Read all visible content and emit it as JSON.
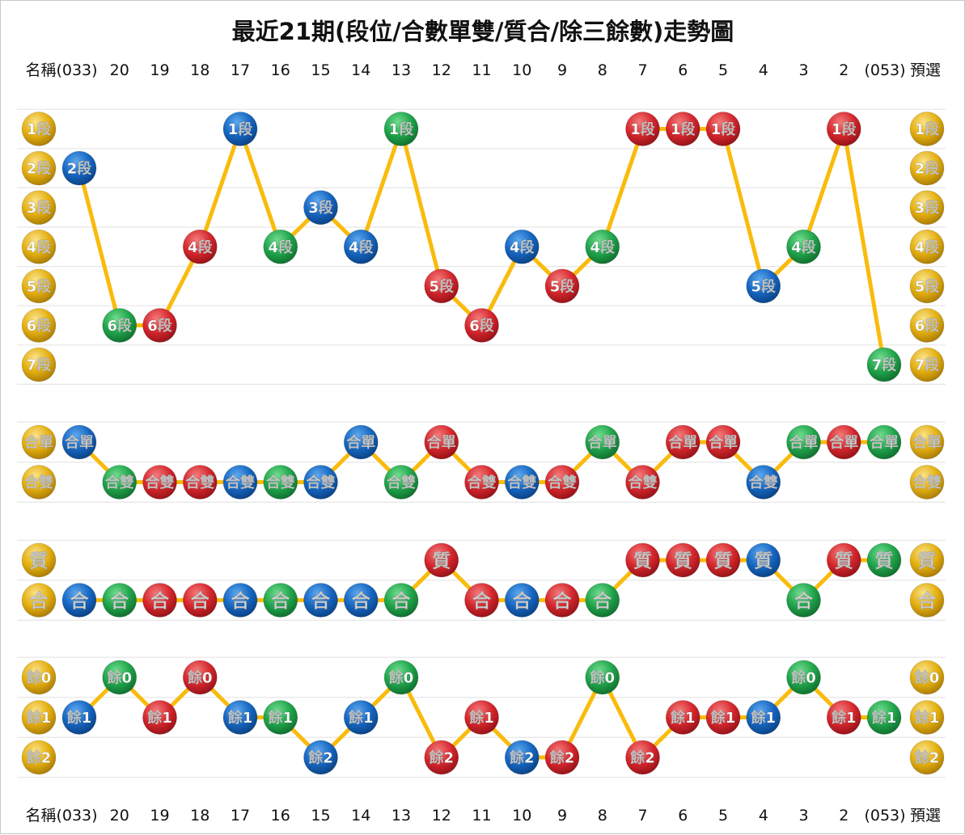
{
  "title": "最近21期(段位/合數單雙/質合/除三餘數)走勢圖",
  "header": {
    "left_label": "名稱(033)",
    "periods": [
      "20",
      "19",
      "18",
      "17",
      "16",
      "15",
      "14",
      "13",
      "12",
      "11",
      "10",
      "9",
      "8",
      "7",
      "6",
      "5",
      "4",
      "3",
      "2"
    ],
    "right_label_a": "(053)",
    "right_label_b": "預選"
  },
  "colors": {
    "line": "#F9BB0C",
    "blue": "#1565C0",
    "red": "#D3262C",
    "green": "#1FA34A",
    "gold": "#E3AE0E"
  },
  "chart_data": [
    {
      "type": "line",
      "name": "段位",
      "levels": [
        "1段",
        "2段",
        "3段",
        "4段",
        "5段",
        "6段",
        "7段"
      ],
      "points": [
        {
          "period": "033",
          "value": "2段",
          "color": "blue"
        },
        {
          "period": "20",
          "value": "6段",
          "color": "green"
        },
        {
          "period": "19",
          "value": "6段",
          "color": "red"
        },
        {
          "period": "18",
          "value": "4段",
          "color": "red"
        },
        {
          "period": "17",
          "value": "1段",
          "color": "blue"
        },
        {
          "period": "16",
          "value": "4段",
          "color": "green"
        },
        {
          "period": "15",
          "value": "3段",
          "color": "blue"
        },
        {
          "period": "14",
          "value": "4段",
          "color": "blue"
        },
        {
          "period": "13",
          "value": "1段",
          "color": "green"
        },
        {
          "period": "12",
          "value": "5段",
          "color": "red"
        },
        {
          "period": "11",
          "value": "6段",
          "color": "red"
        },
        {
          "period": "10",
          "value": "4段",
          "color": "blue"
        },
        {
          "period": "9",
          "value": "5段",
          "color": "red"
        },
        {
          "period": "8",
          "value": "4段",
          "color": "green"
        },
        {
          "period": "7",
          "value": "1段",
          "color": "red"
        },
        {
          "period": "6",
          "value": "1段",
          "color": "red"
        },
        {
          "period": "5",
          "value": "1段",
          "color": "red"
        },
        {
          "period": "4",
          "value": "5段",
          "color": "blue"
        },
        {
          "period": "3",
          "value": "4段",
          "color": "green"
        },
        {
          "period": "2",
          "value": "1段",
          "color": "red"
        },
        {
          "period": "053",
          "value": "7段",
          "color": "green"
        }
      ]
    },
    {
      "type": "line",
      "name": "合數單雙",
      "levels": [
        "合單",
        "合雙"
      ],
      "points": [
        {
          "period": "033",
          "value": "合單",
          "color": "blue"
        },
        {
          "period": "20",
          "value": "合雙",
          "color": "green"
        },
        {
          "period": "19",
          "value": "合雙",
          "color": "red"
        },
        {
          "period": "18",
          "value": "合雙",
          "color": "red"
        },
        {
          "period": "17",
          "value": "合雙",
          "color": "blue"
        },
        {
          "period": "16",
          "value": "合雙",
          "color": "green"
        },
        {
          "period": "15",
          "value": "合雙",
          "color": "blue"
        },
        {
          "period": "14",
          "value": "合單",
          "color": "blue"
        },
        {
          "period": "13",
          "value": "合雙",
          "color": "green"
        },
        {
          "period": "12",
          "value": "合單",
          "color": "red"
        },
        {
          "period": "11",
          "value": "合雙",
          "color": "red"
        },
        {
          "period": "10",
          "value": "合雙",
          "color": "blue"
        },
        {
          "period": "9",
          "value": "合雙",
          "color": "red"
        },
        {
          "period": "8",
          "value": "合單",
          "color": "green"
        },
        {
          "period": "7",
          "value": "合雙",
          "color": "red"
        },
        {
          "period": "6",
          "value": "合單",
          "color": "red"
        },
        {
          "period": "5",
          "value": "合單",
          "color": "red"
        },
        {
          "period": "4",
          "value": "合雙",
          "color": "blue"
        },
        {
          "period": "3",
          "value": "合單",
          "color": "green"
        },
        {
          "period": "2",
          "value": "合單",
          "color": "red"
        },
        {
          "period": "053",
          "value": "合單",
          "color": "green"
        }
      ]
    },
    {
      "type": "line",
      "name": "質合",
      "levels": [
        "質",
        "合"
      ],
      "points": [
        {
          "period": "033",
          "value": "合",
          "color": "blue"
        },
        {
          "period": "20",
          "value": "合",
          "color": "green"
        },
        {
          "period": "19",
          "value": "合",
          "color": "red"
        },
        {
          "period": "18",
          "value": "合",
          "color": "red"
        },
        {
          "period": "17",
          "value": "合",
          "color": "blue"
        },
        {
          "period": "16",
          "value": "合",
          "color": "green"
        },
        {
          "period": "15",
          "value": "合",
          "color": "blue"
        },
        {
          "period": "14",
          "value": "合",
          "color": "blue"
        },
        {
          "period": "13",
          "value": "合",
          "color": "green"
        },
        {
          "period": "12",
          "value": "質",
          "color": "red"
        },
        {
          "period": "11",
          "value": "合",
          "color": "red"
        },
        {
          "period": "10",
          "value": "合",
          "color": "blue"
        },
        {
          "period": "9",
          "value": "合",
          "color": "red"
        },
        {
          "period": "8",
          "value": "合",
          "color": "green"
        },
        {
          "period": "7",
          "value": "質",
          "color": "red"
        },
        {
          "period": "6",
          "value": "質",
          "color": "red"
        },
        {
          "period": "5",
          "value": "質",
          "color": "red"
        },
        {
          "period": "4",
          "value": "質",
          "color": "blue"
        },
        {
          "period": "3",
          "value": "合",
          "color": "green"
        },
        {
          "period": "2",
          "value": "質",
          "color": "red"
        },
        {
          "period": "053",
          "value": "質",
          "color": "green"
        }
      ]
    },
    {
      "type": "line",
      "name": "除三餘數",
      "levels": [
        "餘0",
        "餘1",
        "餘2"
      ],
      "points": [
        {
          "period": "033",
          "value": "餘1",
          "color": "blue"
        },
        {
          "period": "20",
          "value": "餘0",
          "color": "green"
        },
        {
          "period": "19",
          "value": "餘1",
          "color": "red"
        },
        {
          "period": "18",
          "value": "餘0",
          "color": "red"
        },
        {
          "period": "17",
          "value": "餘1",
          "color": "blue"
        },
        {
          "period": "16",
          "value": "餘1",
          "color": "green"
        },
        {
          "period": "15",
          "value": "餘2",
          "color": "blue"
        },
        {
          "period": "14",
          "value": "餘1",
          "color": "blue"
        },
        {
          "period": "13",
          "value": "餘0",
          "color": "green"
        },
        {
          "period": "12",
          "value": "餘2",
          "color": "red"
        },
        {
          "period": "11",
          "value": "餘1",
          "color": "red"
        },
        {
          "period": "10",
          "value": "餘2",
          "color": "blue"
        },
        {
          "period": "9",
          "value": "餘2",
          "color": "red"
        },
        {
          "period": "8",
          "value": "餘0",
          "color": "green"
        },
        {
          "period": "7",
          "value": "餘2",
          "color": "red"
        },
        {
          "period": "6",
          "value": "餘1",
          "color": "red"
        },
        {
          "period": "5",
          "value": "餘1",
          "color": "red"
        },
        {
          "period": "4",
          "value": "餘1",
          "color": "blue"
        },
        {
          "period": "3",
          "value": "餘0",
          "color": "green"
        },
        {
          "period": "2",
          "value": "餘1",
          "color": "red"
        },
        {
          "period": "053",
          "value": "餘1",
          "color": "green"
        }
      ]
    }
  ]
}
